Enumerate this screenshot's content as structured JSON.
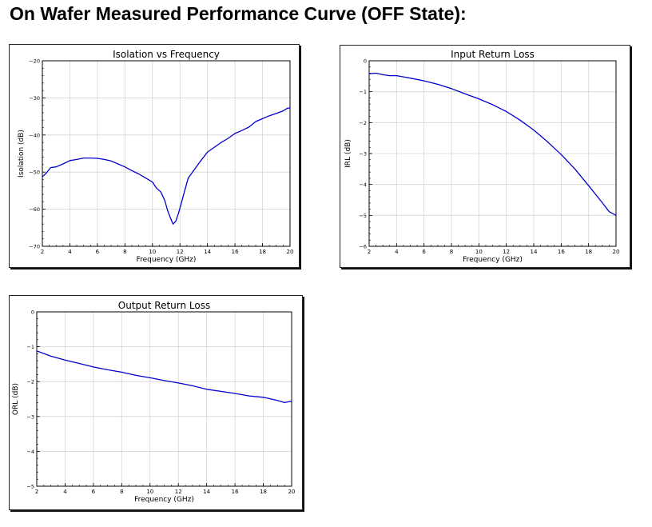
{
  "page": {
    "title": "On Wafer Measured Performance Curve (OFF State):"
  },
  "chart_data": [
    {
      "id": "isolation",
      "type": "line",
      "title": "Isolation vs Frequency",
      "xlabel": "Frequency (GHz)",
      "ylabel": "Isolation (dB)",
      "xlim": [
        2,
        20
      ],
      "ylim": [
        -70,
        -20
      ],
      "xticks": [
        2,
        4,
        6,
        8,
        10,
        12,
        14,
        16,
        18,
        20
      ],
      "yticks": [
        -70,
        -60,
        -50,
        -40,
        -30,
        -20
      ],
      "grid": true,
      "line_color": "#0000cc",
      "series": [
        {
          "name": "Isolation",
          "x": [
            2.0,
            2.3,
            2.6,
            3.0,
            3.5,
            4.0,
            4.5,
            5.0,
            5.5,
            6.0,
            6.5,
            7.0,
            7.5,
            8.0,
            8.5,
            9.0,
            9.5,
            10.0,
            10.3,
            10.6,
            10.9,
            11.1,
            11.3,
            11.5,
            11.7,
            11.9,
            12.1,
            12.3,
            12.6,
            13.0,
            13.5,
            14.0,
            14.5,
            15.0,
            15.5,
            16.0,
            16.5,
            17.0,
            17.5,
            18.0,
            18.5,
            19.0,
            19.5,
            19.8,
            20.0
          ],
          "values": [
            -51.3,
            -50.2,
            -48.8,
            -48.6,
            -47.8,
            -46.9,
            -46.6,
            -46.2,
            -46.2,
            -46.3,
            -46.6,
            -47.0,
            -47.8,
            -48.6,
            -49.6,
            -50.5,
            -51.6,
            -52.7,
            -54.3,
            -55.3,
            -57.7,
            -60.3,
            -62.3,
            -64.0,
            -63.2,
            -61.0,
            -58.4,
            -55.6,
            -51.6,
            -49.6,
            -47.0,
            -44.6,
            -43.3,
            -42.0,
            -40.9,
            -39.6,
            -38.8,
            -37.9,
            -36.4,
            -35.6,
            -34.8,
            -34.2,
            -33.5,
            -32.8,
            -32.7
          ]
        }
      ]
    },
    {
      "id": "irl",
      "type": "line",
      "title": "Input Return Loss",
      "xlabel": "Frequency (GHz)",
      "ylabel": "IRL (dB)",
      "xlim": [
        2,
        20
      ],
      "ylim": [
        -6,
        0
      ],
      "xticks": [
        2,
        4,
        6,
        8,
        10,
        12,
        14,
        16,
        18,
        20
      ],
      "yticks": [
        -6,
        -5,
        -4,
        -3,
        -2,
        -1,
        0
      ],
      "grid": true,
      "line_color": "#0000cc",
      "series": [
        {
          "name": "IRL",
          "x": [
            2.0,
            2.5,
            3.0,
            3.5,
            4.0,
            4.5,
            5.0,
            6.0,
            7.0,
            8.0,
            9.0,
            10.0,
            11.0,
            12.0,
            13.0,
            14.0,
            15.0,
            16.0,
            17.0,
            18.0,
            19.0,
            19.5,
            20.0
          ],
          "values": [
            -0.42,
            -0.4,
            -0.45,
            -0.48,
            -0.48,
            -0.52,
            -0.56,
            -0.65,
            -0.76,
            -0.9,
            -1.07,
            -1.23,
            -1.42,
            -1.64,
            -1.92,
            -2.24,
            -2.62,
            -3.03,
            -3.5,
            -4.04,
            -4.59,
            -4.88,
            -5.0
          ]
        }
      ]
    },
    {
      "id": "orl",
      "type": "line",
      "title": "Output Return Loss",
      "xlabel": "Frequency (GHz)",
      "ylabel": "ORL (dB)",
      "xlim": [
        2,
        20
      ],
      "ylim": [
        -5,
        0
      ],
      "xticks": [
        2,
        4,
        6,
        8,
        10,
        12,
        14,
        16,
        18,
        20
      ],
      "yticks": [
        -5,
        -4,
        -3,
        -2,
        -1,
        0
      ],
      "grid": true,
      "line_color": "#0000cc",
      "series": [
        {
          "name": "ORL",
          "x": [
            2.0,
            3.0,
            4.0,
            5.0,
            6.0,
            7.0,
            8.0,
            9.0,
            10.0,
            11.0,
            12.0,
            13.0,
            14.0,
            15.0,
            16.0,
            17.0,
            18.0,
            19.0,
            19.5,
            20.0
          ],
          "values": [
            -1.12,
            -1.27,
            -1.38,
            -1.48,
            -1.58,
            -1.66,
            -1.73,
            -1.82,
            -1.89,
            -1.97,
            -2.04,
            -2.12,
            -2.22,
            -2.28,
            -2.34,
            -2.41,
            -2.45,
            -2.54,
            -2.6,
            -2.56
          ]
        }
      ]
    }
  ]
}
